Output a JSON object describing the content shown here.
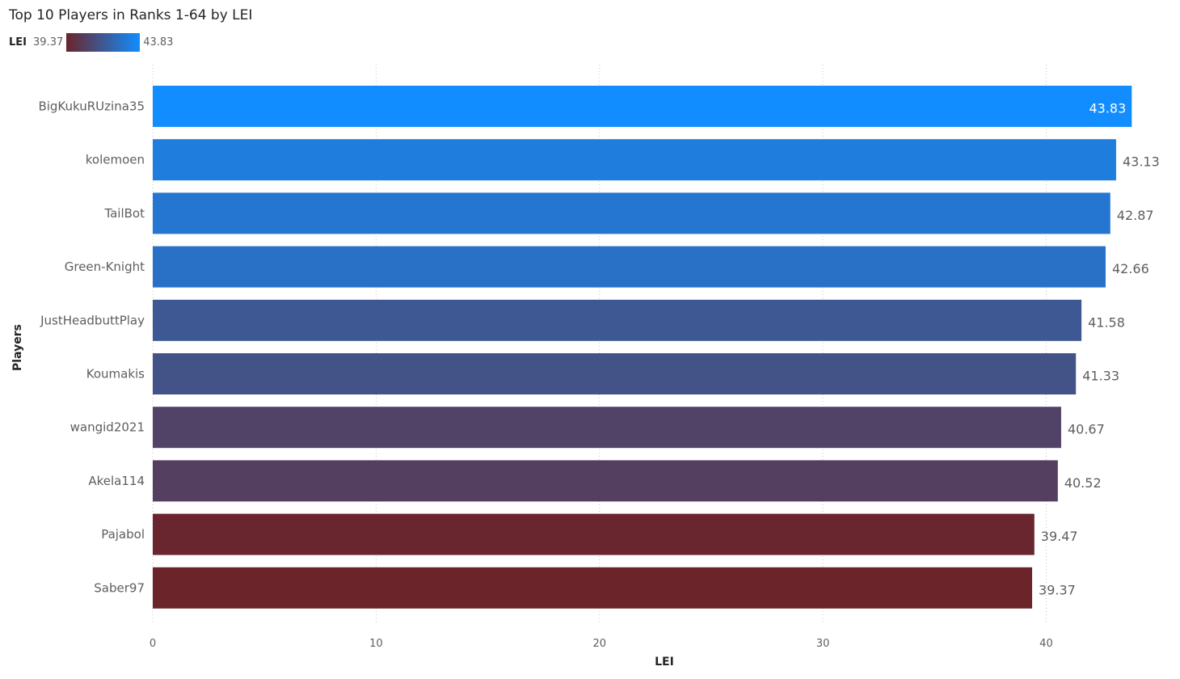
{
  "chart_data": {
    "type": "bar",
    "orientation": "horizontal",
    "title": "Top 10 Players in Ranks 1-64 by LEI",
    "xlabel": "LEI",
    "ylabel": "Players",
    "categories": [
      "BigKukuRUzina35",
      "kolemoen",
      "TailBot",
      "Green-Knight",
      "JustHeadbuttPlay",
      "Koumakis",
      "wangid2021",
      "Akela114",
      "Pajabol",
      "Saber97"
    ],
    "values": [
      43.83,
      43.13,
      42.87,
      42.66,
      41.58,
      41.33,
      40.67,
      40.52,
      39.47,
      39.37
    ],
    "value_labels": [
      "43.83",
      "43.13",
      "42.87",
      "42.66",
      "41.58",
      "41.33",
      "40.67",
      "40.52",
      "39.47",
      "39.37"
    ],
    "xlim": [
      0,
      44
    ],
    "xticks": [
      0,
      10,
      20,
      30,
      40
    ],
    "xtick_labels": [
      "0",
      "10",
      "20",
      "30",
      "40"
    ],
    "grid": "vertical-dotted",
    "legend": {
      "title": "LEI",
      "min_label": "39.37",
      "max_label": "43.83",
      "min_color": "#6b2429",
      "max_color": "#118dff",
      "placement": "top-left"
    }
  }
}
